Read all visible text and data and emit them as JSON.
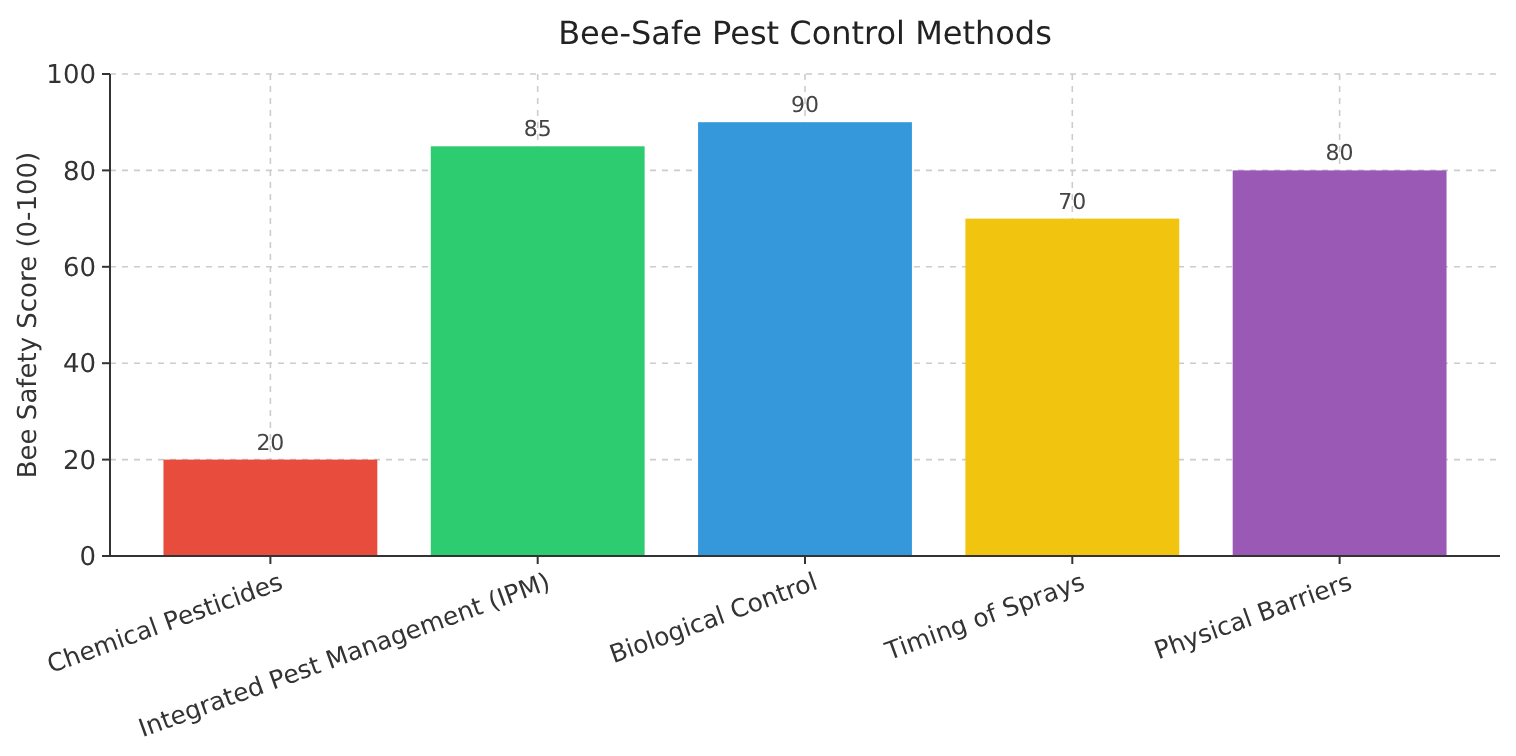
{
  "chart_data": {
    "type": "bar",
    "title": "Bee-Safe Pest Control Methods",
    "ylabel": "Bee Safety Score (0-100)",
    "categories": [
      "Chemical Pesticides",
      "Integrated Pest Management (IPM)",
      "Biological Control",
      "Timing of Sprays",
      "Physical Barriers"
    ],
    "values": [
      20,
      85,
      90,
      70,
      80
    ],
    "colors": [
      "#e74c3c",
      "#2ecc71",
      "#3498db",
      "#f1c40f",
      "#9b59b6"
    ],
    "ylim": [
      0,
      100
    ],
    "yticks": [
      0,
      20,
      40,
      60,
      80,
      100
    ],
    "grid": true,
    "data_labels": true
  }
}
